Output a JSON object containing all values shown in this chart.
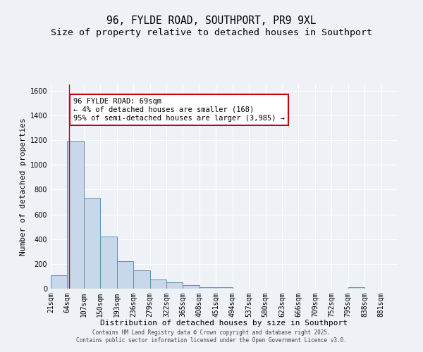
{
  "title": "96, FYLDE ROAD, SOUTHPORT, PR9 9XL",
  "subtitle": "Size of property relative to detached houses in Southport",
  "xlabel": "Distribution of detached houses by size in Southport",
  "ylabel": "Number of detached properties",
  "categories": [
    "21sqm",
    "64sqm",
    "107sqm",
    "150sqm",
    "193sqm",
    "236sqm",
    "279sqm",
    "322sqm",
    "365sqm",
    "408sqm",
    "451sqm",
    "494sqm",
    "537sqm",
    "580sqm",
    "623sqm",
    "666sqm",
    "709sqm",
    "752sqm",
    "795sqm",
    "838sqm",
    "881sqm"
  ],
  "histogram_edges": [
    21,
    64,
    107,
    150,
    193,
    236,
    279,
    322,
    365,
    408,
    451,
    494,
    537,
    580,
    623,
    666,
    709,
    752,
    795,
    838,
    881,
    924
  ],
  "histogram_counts": [
    108,
    1195,
    735,
    420,
    220,
    148,
    72,
    52,
    28,
    14,
    14,
    0,
    0,
    0,
    0,
    0,
    0,
    0,
    14,
    0,
    0
  ],
  "bar_color": "#c8d8ea",
  "bar_edge_color": "#6090b0",
  "property_line_x": 69,
  "annotation_text": "96 FYLDE ROAD: 69sqm\n← 4% of detached houses are smaller (168)\n95% of semi-detached houses are larger (3,985) →",
  "annotation_box_color": "#ffffff",
  "annotation_box_edge": "#cc0000",
  "vline_color": "#cc0000",
  "background_color": "#eef2f7",
  "footer_text": "Contains HM Land Registry data © Crown copyright and database right 2025.\nContains public sector information licensed under the Open Government Licence v3.0.",
  "ylim": [
    0,
    1650
  ],
  "yticks": [
    0,
    200,
    400,
    600,
    800,
    1000,
    1200,
    1400,
    1600
  ],
  "title_fontsize": 10.5,
  "subtitle_fontsize": 9.5,
  "xlabel_fontsize": 8,
  "ylabel_fontsize": 8,
  "tick_fontsize": 7,
  "annot_fontsize": 7.5,
  "footer_fontsize": 5.5
}
